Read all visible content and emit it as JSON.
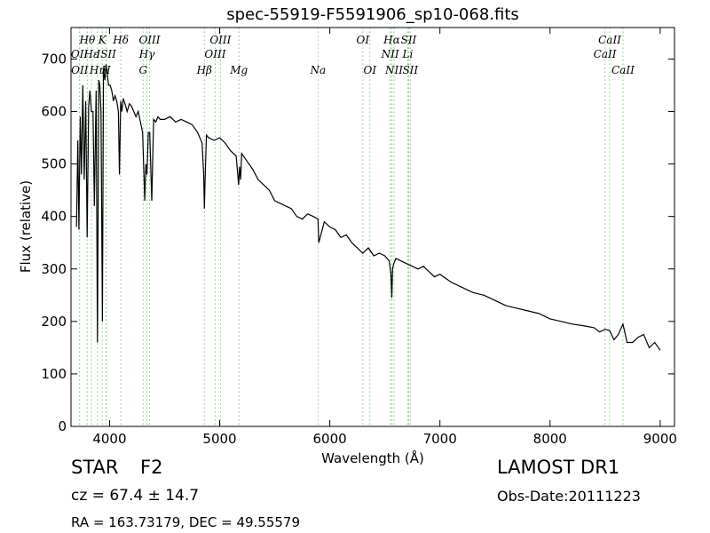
{
  "figure": {
    "title": "spec-55919-F5591906_sp10-068.fits",
    "object_type": "STAR",
    "object_class": "F2",
    "survey": "LAMOST DR1",
    "redshift_text": "cz = 67.4  ± 14.7",
    "obs_date": "Obs-Date:20111223",
    "coords": "RA = 163.73179, DEC = 49.55579"
  },
  "chart_data": {
    "type": "line",
    "xlabel": "Wavelength (Å)",
    "ylabel": "Flux (relative)",
    "xlim": [
      3650,
      9130
    ],
    "ylim": [
      0,
      760
    ],
    "xticks": [
      4000,
      5000,
      6000,
      7000,
      8000,
      9000
    ],
    "yticks": [
      0,
      100,
      200,
      300,
      400,
      500,
      600,
      700
    ],
    "grid": false,
    "line_color": "#000000",
    "marker_color": "#77cc77",
    "series": [
      {
        "x": [
          3700,
          3712,
          3722,
          3734,
          3745,
          3757,
          3770,
          3784,
          3797,
          3810,
          3822,
          3835,
          3850,
          3862,
          3878,
          3890,
          3902,
          3912,
          3922,
          3935,
          3945,
          3958,
          3968,
          3980,
          3992,
          4005,
          4020,
          4035,
          4050,
          4065,
          4080,
          4090,
          4101,
          4112,
          4125,
          4140,
          4160,
          4180,
          4200,
          4220,
          4240,
          4260,
          4280,
          4300,
          4320,
          4330,
          4340,
          4352,
          4365,
          4383,
          4400,
          4420,
          4440,
          4460,
          4500,
          4550,
          4600,
          4650,
          4700,
          4750,
          4800,
          4840,
          4855,
          4861,
          4868,
          4880,
          4900,
          4950,
          5000,
          5050,
          5100,
          5150,
          5172,
          5180,
          5190,
          5200,
          5250,
          5300,
          5350,
          5400,
          5450,
          5500,
          5550,
          5600,
          5650,
          5700,
          5750,
          5800,
          5850,
          5893,
          5900,
          5950,
          6000,
          6050,
          6100,
          6150,
          6200,
          6250,
          6300,
          6350,
          6400,
          6450,
          6500,
          6540,
          6555,
          6563,
          6570,
          6580,
          6600,
          6650,
          6700,
          6750,
          6800,
          6850,
          6900,
          6950,
          7000,
          7100,
          7200,
          7300,
          7400,
          7500,
          7600,
          7700,
          7800,
          7900,
          8000,
          8100,
          8200,
          8300,
          8400,
          8450,
          8500,
          8540,
          8580,
          8620,
          8662,
          8700,
          8750,
          8800,
          8850,
          8900,
          8950,
          9000
        ],
        "y": [
          380,
          545,
          375,
          590,
          480,
          650,
          470,
          620,
          360,
          610,
          640,
          600,
          600,
          420,
          640,
          160,
          660,
          650,
          600,
          200,
          680,
          660,
          690,
          670,
          650,
          650,
          640,
          620,
          630,
          620,
          600,
          480,
          620,
          600,
          625,
          615,
          600,
          615,
          610,
          600,
          590,
          600,
          580,
          560,
          430,
          500,
          480,
          560,
          560,
          430,
          585,
          580,
          590,
          585,
          585,
          590,
          580,
          585,
          580,
          575,
          560,
          540,
          480,
          415,
          470,
          555,
          550,
          545,
          550,
          540,
          525,
          515,
          460,
          495,
          470,
          520,
          505,
          490,
          470,
          460,
          450,
          430,
          425,
          420,
          415,
          400,
          395,
          405,
          400,
          395,
          350,
          390,
          380,
          375,
          360,
          365,
          350,
          340,
          330,
          340,
          325,
          330,
          325,
          315,
          290,
          245,
          300,
          310,
          320,
          315,
          310,
          305,
          300,
          305,
          295,
          285,
          290,
          275,
          265,
          255,
          250,
          240,
          230,
          225,
          220,
          215,
          205,
          200,
          195,
          192,
          188,
          180,
          185,
          183,
          165,
          175,
          195,
          160,
          160,
          170,
          175,
          150,
          160,
          145
        ]
      }
    ],
    "spectral_lines": [
      {
        "label": "Hθ",
        "wl": 3798,
        "row": 0
      },
      {
        "label": "K",
        "wl": 3934,
        "row": 0
      },
      {
        "label": "Hδ",
        "wl": 4102,
        "row": 0
      },
      {
        "label": "OIII",
        "wl": 4363,
        "row": 0
      },
      {
        "label": "OIII",
        "wl": 5007,
        "row": 0
      },
      {
        "label": "OI",
        "wl": 6300,
        "row": 0
      },
      {
        "label": "Hα",
        "wl": 6563,
        "row": 0
      },
      {
        "label": "SII",
        "wl": 6716,
        "row": 0
      },
      {
        "label": "CaII",
        "wl": 8542,
        "row": 0
      },
      {
        "label": "OII",
        "wl": 3727,
        "row": 1
      },
      {
        "label": "Hε",
        "wl": 3835,
        "row": 1
      },
      {
        "label": "ISII",
        "wl": 3970,
        "row": 1
      },
      {
        "label": "Hγ",
        "wl": 4340,
        "row": 1
      },
      {
        "label": "OIII",
        "wl": 4959,
        "row": 1
      },
      {
        "label": "NII",
        "wl": 6548,
        "row": 1
      },
      {
        "label": "Li",
        "wl": 6708,
        "row": 1
      },
      {
        "label": "CaII",
        "wl": 8498,
        "row": 1
      },
      {
        "label": "OII",
        "wl": 3729,
        "row": 2
      },
      {
        "label": "Hη",
        "wl": 3889,
        "row": 2
      },
      {
        "label": "H",
        "wl": 3968,
        "row": 2
      },
      {
        "label": "G",
        "wl": 4305,
        "row": 2
      },
      {
        "label": "Hβ",
        "wl": 4861,
        "row": 2
      },
      {
        "label": "Mg",
        "wl": 5175,
        "row": 2
      },
      {
        "label": "Na",
        "wl": 5893,
        "row": 2
      },
      {
        "label": "OI",
        "wl": 6364,
        "row": 2
      },
      {
        "label": "NII",
        "wl": 6583,
        "row": 2
      },
      {
        "label": "SII",
        "wl": 6731,
        "row": 2
      },
      {
        "label": "CaII",
        "wl": 8662,
        "row": 2
      }
    ]
  }
}
